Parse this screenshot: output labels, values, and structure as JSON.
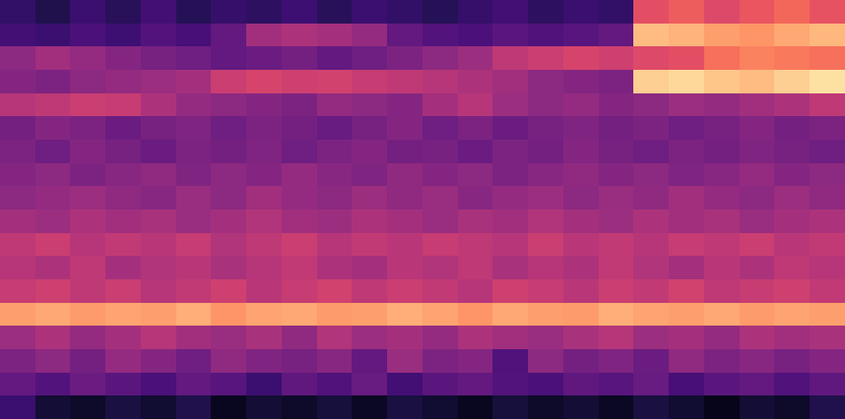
{
  "chart_data": {
    "type": "heatmap",
    "color": "magma",
    "tick_labels": false,
    "zlim": [
      0,
      100
    ],
    "cells": [
      [
        18,
        14,
        20,
        16,
        22,
        15,
        19,
        17,
        21,
        16,
        20,
        18,
        15,
        19,
        22,
        17,
        20,
        18,
        62,
        66,
        60,
        64,
        68,
        63
      ],
      [
        22,
        20,
        24,
        21,
        26,
        23,
        30,
        45,
        48,
        46,
        42,
        30,
        26,
        24,
        28,
        25,
        27,
        30,
        86,
        84,
        80,
        78,
        82,
        85
      ],
      [
        40,
        45,
        42,
        38,
        35,
        33,
        30,
        32,
        34,
        30,
        33,
        36,
        40,
        44,
        52,
        55,
        58,
        56,
        60,
        62,
        70,
        74,
        72,
        70
      ],
      [
        38,
        36,
        40,
        42,
        44,
        46,
        55,
        58,
        56,
        57,
        54,
        52,
        50,
        48,
        45,
        40,
        38,
        36,
        90,
        92,
        88,
        86,
        90,
        94
      ],
      [
        50,
        52,
        55,
        54,
        48,
        42,
        40,
        38,
        36,
        42,
        40,
        38,
        46,
        50,
        44,
        40,
        42,
        38,
        40,
        44,
        42,
        45,
        48,
        52
      ],
      [
        34,
        38,
        36,
        32,
        35,
        37,
        33,
        36,
        34,
        31,
        35,
        38,
        33,
        36,
        32,
        35,
        37,
        34,
        36,
        33,
        35,
        38,
        34,
        36
      ],
      [
        36,
        33,
        38,
        35,
        32,
        36,
        34,
        37,
        33,
        36,
        38,
        34,
        35,
        32,
        36,
        34,
        38,
        35,
        33,
        36,
        34,
        37,
        35,
        33
      ],
      [
        38,
        40,
        36,
        39,
        41,
        37,
        40,
        38,
        42,
        39,
        37,
        41,
        38,
        40,
        36,
        39,
        41,
        38,
        40,
        37,
        39,
        42,
        38,
        40
      ],
      [
        40,
        42,
        44,
        41,
        39,
        43,
        40,
        45,
        42,
        40,
        44,
        41,
        43,
        39,
        42,
        44,
        40,
        43,
        41,
        45,
        42,
        40,
        44,
        41
      ],
      [
        46,
        44,
        48,
        45,
        47,
        43,
        46,
        49,
        45,
        44,
        48,
        46,
        43,
        47,
        45,
        49,
        46,
        44,
        48,
        45,
        47,
        43,
        46,
        48
      ],
      [
        52,
        55,
        50,
        53,
        51,
        54,
        49,
        52,
        55,
        50,
        53,
        51,
        54,
        52,
        50,
        55,
        51,
        53,
        50,
        54,
        52,
        55,
        51,
        53
      ],
      [
        50,
        48,
        52,
        46,
        49,
        51,
        47,
        50,
        53,
        48,
        46,
        51,
        49,
        52,
        47,
        50,
        48,
        53,
        49,
        46,
        51,
        48,
        52,
        50
      ],
      [
        54,
        56,
        52,
        55,
        50,
        53,
        56,
        51,
        54,
        57,
        52,
        55,
        53,
        50,
        56,
        54,
        51,
        55,
        53,
        57,
        52,
        54,
        56,
        53
      ],
      [
        80,
        82,
        79,
        81,
        80,
        83,
        78,
        81,
        82,
        79,
        80,
        83,
        81,
        78,
        82,
        80,
        79,
        83,
        81,
        80,
        82,
        79,
        81,
        80
      ],
      [
        44,
        48,
        42,
        46,
        50,
        45,
        43,
        47,
        41,
        49,
        44,
        46,
        42,
        48,
        45,
        43,
        47,
        50,
        44,
        46,
        42,
        48,
        45,
        47
      ],
      [
        36,
        40,
        34,
        42,
        38,
        33,
        41,
        37,
        35,
        39,
        30,
        43,
        36,
        38,
        25,
        40,
        34,
        37,
        32,
        41,
        36,
        39,
        35,
        38
      ],
      [
        30,
        26,
        32,
        28,
        24,
        30,
        27,
        20,
        29,
        25,
        31,
        22,
        28,
        30,
        26,
        24,
        29,
        27,
        31,
        23,
        28,
        30,
        25,
        29
      ],
      [
        20,
        10,
        8,
        12,
        9,
        14,
        6,
        10,
        8,
        11,
        7,
        12,
        9,
        6,
        11,
        8,
        10,
        7,
        12,
        9,
        5,
        10,
        8,
        14
      ]
    ]
  }
}
